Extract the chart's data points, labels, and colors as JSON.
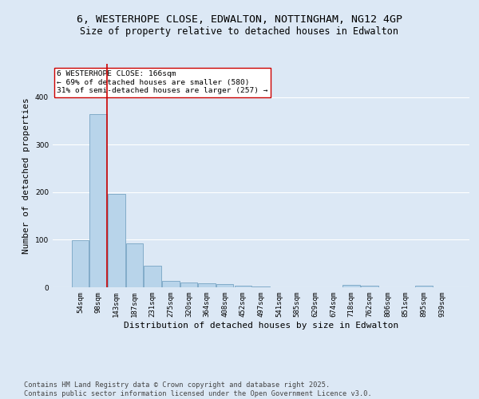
{
  "title_line1": "6, WESTERHOPE CLOSE, EDWALTON, NOTTINGHAM, NG12 4GP",
  "title_line2": "Size of property relative to detached houses in Edwalton",
  "xlabel": "Distribution of detached houses by size in Edwalton",
  "ylabel": "Number of detached properties",
  "categories": [
    "54sqm",
    "98sqm",
    "143sqm",
    "187sqm",
    "231sqm",
    "275sqm",
    "320sqm",
    "364sqm",
    "408sqm",
    "452sqm",
    "497sqm",
    "541sqm",
    "585sqm",
    "629sqm",
    "674sqm",
    "718sqm",
    "762sqm",
    "806sqm",
    "851sqm",
    "895sqm",
    "939sqm"
  ],
  "values": [
    99,
    365,
    196,
    93,
    45,
    14,
    10,
    9,
    6,
    3,
    1,
    0,
    0,
    0,
    0,
    5,
    3,
    0,
    0,
    3,
    0
  ],
  "bar_color": "#b8d4ea",
  "bar_edge_color": "#6699bb",
  "vline_color": "#cc0000",
  "annotation_text": "6 WESTERHOPE CLOSE: 166sqm\n← 69% of detached houses are smaller (580)\n31% of semi-detached houses are larger (257) →",
  "annotation_box_color": "#ffffff",
  "annotation_box_edge": "#cc0000",
  "footnote": "Contains HM Land Registry data © Crown copyright and database right 2025.\nContains public sector information licensed under the Open Government Licence v3.0.",
  "bg_color": "#dce8f5",
  "plot_bg_color": "#dce8f5",
  "grid_color": "#ffffff",
  "ylim": [
    0,
    470
  ],
  "title_fontsize": 9.5,
  "subtitle_fontsize": 8.5,
  "axis_label_fontsize": 8,
  "tick_fontsize": 6.5,
  "footnote_fontsize": 6.2
}
